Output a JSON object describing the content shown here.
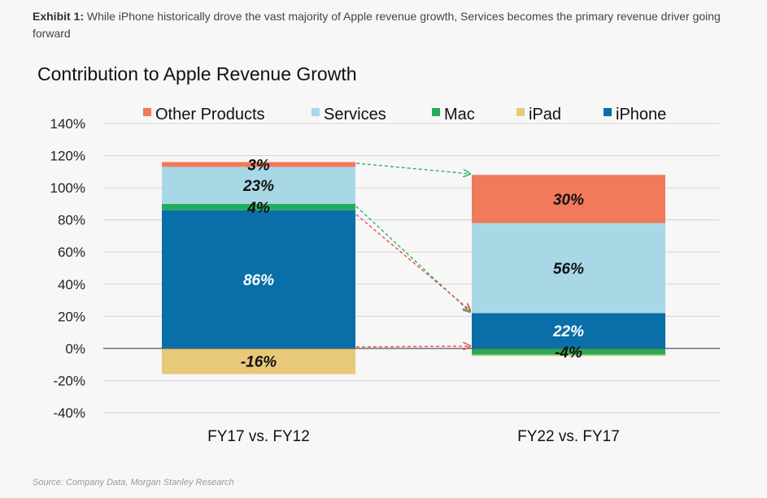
{
  "exhibit": {
    "label": "Exhibit 1:",
    "text": "While iPhone historically drove the vast majority of Apple revenue growth, Services becomes the primary revenue driver going forward"
  },
  "source": "Source: Company Data, Morgan Stanley Research",
  "chart_data": {
    "type": "bar",
    "stacked": true,
    "title": "Contribution to Apple Revenue Growth",
    "xlabel": "",
    "ylabel": "",
    "ylim": [
      -40,
      140
    ],
    "yticks": [
      "140%",
      "120%",
      "100%",
      "80%",
      "60%",
      "40%",
      "20%",
      "0%",
      "-20%",
      "-40%"
    ],
    "grid": true,
    "legend_placement": "top",
    "categories": [
      "FY17 vs. FY12",
      "FY22 vs. FY17"
    ],
    "series": [
      {
        "name": "Other Products",
        "color": "#f07a5a",
        "values": [
          3,
          30
        ],
        "labels": [
          "3%",
          "30%"
        ]
      },
      {
        "name": "Services",
        "color": "#a8d8e6",
        "values": [
          23,
          56
        ],
        "labels": [
          "23%",
          "56%"
        ]
      },
      {
        "name": "Mac",
        "color": "#22ad5c",
        "values": [
          4,
          -4
        ],
        "labels": [
          "4%",
          "-4%"
        ]
      },
      {
        "name": "iPad",
        "color": "#e8c97a",
        "values": [
          -16,
          -0.8
        ],
        "labels": [
          "-16%",
          ""
        ]
      },
      {
        "name": "iPhone",
        "color": "#0a6fa8",
        "values": [
          86,
          22
        ],
        "labels": [
          "86%",
          "22%"
        ]
      }
    ]
  }
}
